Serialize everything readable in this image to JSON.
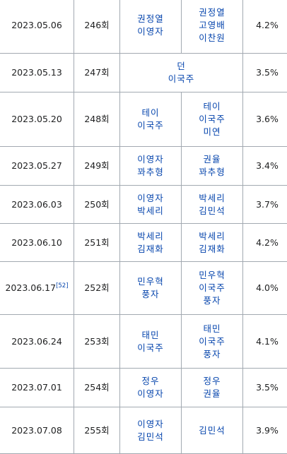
{
  "rows": [
    {
      "date": "2023.05.06",
      "episode": "246회",
      "guests_a": [
        "권정열",
        "이영자"
      ],
      "guests_b": [
        "권정열",
        "고영배",
        "이찬원"
      ],
      "rating": "4.2%"
    },
    {
      "date": "2023.05.13",
      "episode": "247회",
      "guests_merged": [
        "던",
        "이국주"
      ],
      "rating": "3.5%"
    },
    {
      "date": "2023.05.20",
      "episode": "248회",
      "guests_a": [
        "테이",
        "이국주"
      ],
      "guests_b": [
        "테이",
        "이국주",
        "미연"
      ],
      "rating": "3.6%"
    },
    {
      "date": "2023.05.27",
      "episode": "249회",
      "guests_a": [
        "이영자",
        "꽈추형"
      ],
      "guests_b": [
        "권율",
        "꽈추형"
      ],
      "rating": "3.4%"
    },
    {
      "date": "2023.06.03",
      "episode": "250회",
      "guests_a": [
        "이영자",
        "박세리"
      ],
      "guests_b": [
        "박세리",
        "김민석"
      ],
      "rating": "3.7%"
    },
    {
      "date": "2023.06.10",
      "episode": "251회",
      "guests_a": [
        "박세리",
        "김재화"
      ],
      "guests_b": [
        "박세리",
        "김재화"
      ],
      "rating": "4.2%"
    },
    {
      "date": "2023.06.17",
      "ref": "[52]",
      "episode": "252회",
      "guests_a": [
        "민우혁",
        "풍자"
      ],
      "guests_b": [
        "민우혁",
        "이국주",
        "풍자"
      ],
      "rating": "4.0%"
    },
    {
      "date": "2023.06.24",
      "episode": "253회",
      "guests_a": [
        "태민",
        "이국주"
      ],
      "guests_b": [
        "태민",
        "이국주",
        "풍자"
      ],
      "rating": "4.1%"
    },
    {
      "date": "2023.07.01",
      "episode": "254회",
      "guests_a": [
        "정우",
        "이영자"
      ],
      "guests_b": [
        "정우",
        "권율"
      ],
      "rating": "3.5%"
    },
    {
      "date": "2023.07.08",
      "episode": "255회",
      "guests_a": [
        "이영자",
        "김민석"
      ],
      "guests_b": [
        "김민석"
      ],
      "rating": "3.9%"
    }
  ]
}
